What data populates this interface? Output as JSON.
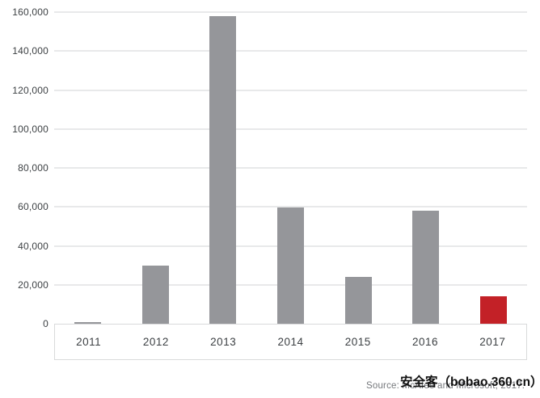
{
  "chart_data": {
    "type": "bar",
    "categories": [
      "2011",
      "2012",
      "2013",
      "2014",
      "2015",
      "2016",
      "2017"
    ],
    "values": [
      1000,
      30000,
      158000,
      59500,
      24000,
      58000,
      14000
    ],
    "title": "",
    "xlabel": "",
    "ylabel": "",
    "ylim": [
      0,
      160000
    ],
    "y_tick_step": 20000,
    "y_tick_labels": [
      "0",
      "20,000",
      "40,000",
      "60,000",
      "80,000",
      "100,000",
      "120,000",
      "140,000",
      "160,000"
    ],
    "grid": true,
    "legend_position": "none",
    "bar_color": "#95969a",
    "highlight_index": 6,
    "highlight_color": "#c32127",
    "gridline_color": "#e8e9ea",
    "axis_strip_border_color": "#d9dadb",
    "tick_text_color": "#3d4144"
  },
  "footer": {
    "source_text": "Source: McAfee and Microsoft, 2017.",
    "watermark_text": "安全客（bobao.360.cn）"
  }
}
